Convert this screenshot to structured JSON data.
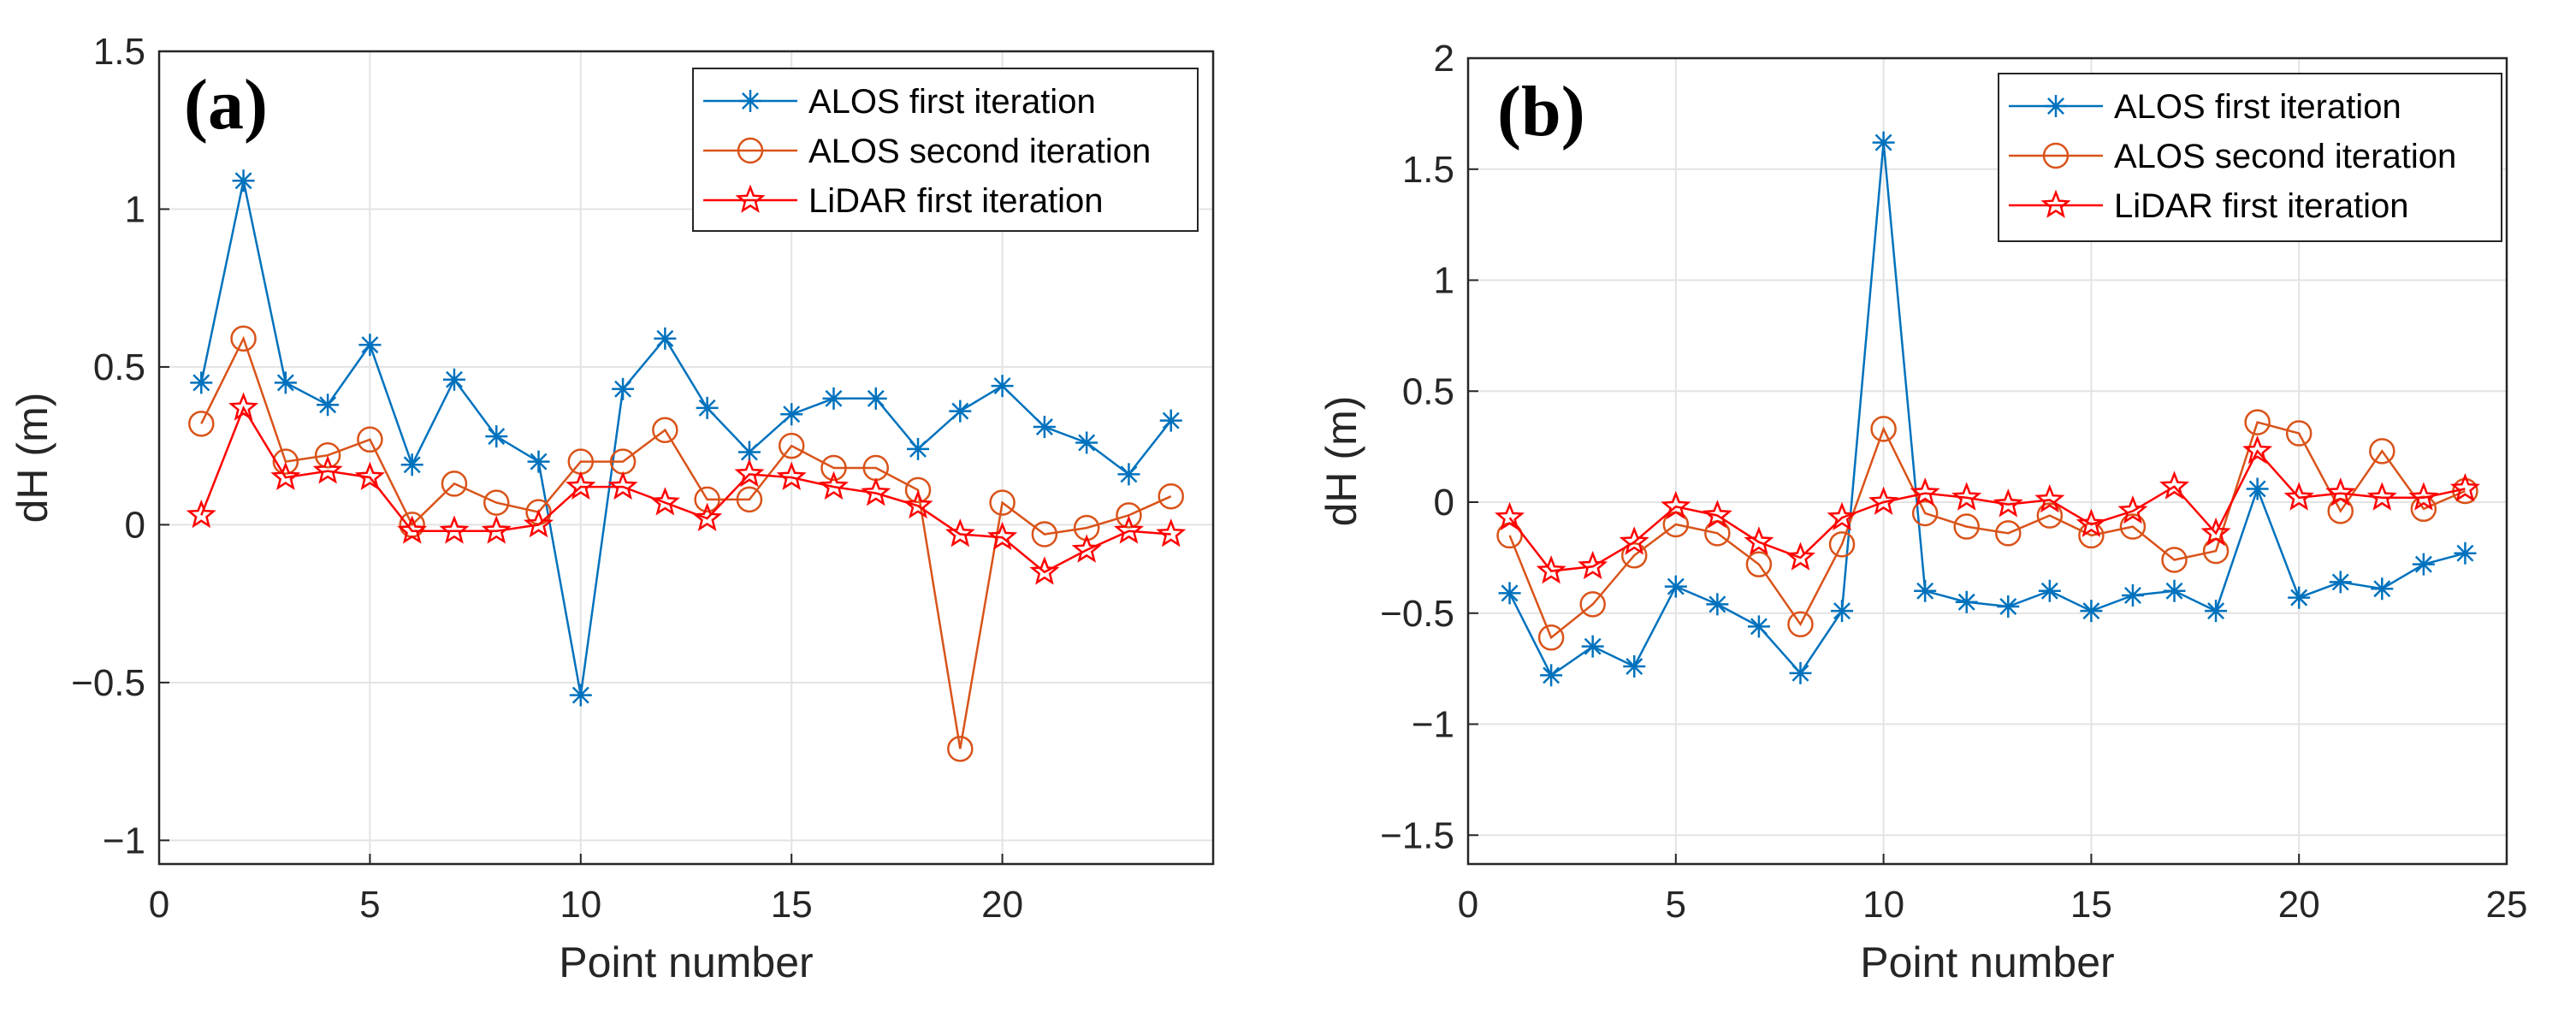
{
  "chart_data": [
    {
      "type": "line",
      "panel_label": "(a)",
      "xlabel": "Point number",
      "ylabel": "dH (m)",
      "xlim": [
        0,
        25
      ],
      "ylim": [
        -1.075,
        1.5
      ],
      "xticks": [
        0,
        5,
        10,
        15,
        20
      ],
      "xtick_labels": [
        "0",
        "5",
        "10",
        "15",
        "20"
      ],
      "yticks": [
        -1,
        -0.5,
        0,
        0.5,
        1,
        1.5
      ],
      "ytick_labels": [
        "−1",
        "−0.5",
        "0",
        "0.5",
        "1",
        "1.5"
      ],
      "grid": true,
      "legend_position": "top-right",
      "x": [
        1,
        2,
        3,
        4,
        5,
        6,
        7,
        8,
        9,
        10,
        11,
        12,
        13,
        14,
        15,
        16,
        17,
        18,
        19,
        20,
        21,
        22,
        23,
        24
      ],
      "series": [
        {
          "name": "ALOS first iteration",
          "color": "#0072BD",
          "marker": "asterisk",
          "values": [
            0.45,
            1.09,
            0.45,
            0.38,
            0.57,
            0.19,
            0.46,
            0.28,
            0.2,
            -0.54,
            0.43,
            0.59,
            0.37,
            0.23,
            0.35,
            0.4,
            0.4,
            0.24,
            0.36,
            0.44,
            0.31,
            0.26,
            0.16,
            0.33
          ]
        },
        {
          "name": "ALOS second iteration",
          "color": "#D95319",
          "marker": "circle",
          "values": [
            0.32,
            0.59,
            0.2,
            0.22,
            0.27,
            0.0,
            0.13,
            0.07,
            0.04,
            0.2,
            0.2,
            0.3,
            0.08,
            0.08,
            0.25,
            0.18,
            0.18,
            0.11,
            -0.71,
            0.07,
            -0.03,
            -0.01,
            0.03,
            0.09
          ]
        },
        {
          "name": "LiDAR first iteration",
          "color": "#FF0000",
          "marker": "star",
          "values": [
            0.03,
            0.37,
            0.15,
            0.17,
            0.15,
            -0.02,
            -0.02,
            -0.02,
            0.0,
            0.12,
            0.12,
            0.07,
            0.02,
            0.16,
            0.15,
            0.12,
            0.1,
            0.06,
            -0.03,
            -0.04,
            -0.15,
            -0.08,
            -0.02,
            -0.03
          ]
        }
      ]
    },
    {
      "type": "line",
      "panel_label": "(b)",
      "xlabel": "Point number",
      "ylabel": "dH (m)",
      "xlim": [
        0,
        25
      ],
      "ylim": [
        -1.63,
        2
      ],
      "xticks": [
        0,
        5,
        10,
        15,
        20,
        25
      ],
      "xtick_labels": [
        "0",
        "5",
        "10",
        "15",
        "20",
        "25"
      ],
      "yticks": [
        -1.5,
        -1,
        -0.5,
        0,
        0.5,
        1,
        1.5,
        2
      ],
      "ytick_labels": [
        "−1.5",
        "−1",
        "−0.5",
        "0",
        "0.5",
        "1",
        "1.5",
        "2"
      ],
      "grid": true,
      "legend_position": "top-right",
      "x": [
        1,
        2,
        3,
        4,
        5,
        6,
        7,
        8,
        9,
        10,
        11,
        12,
        13,
        14,
        15,
        16,
        17,
        18,
        19,
        20,
        21,
        22,
        23,
        24
      ],
      "series": [
        {
          "name": "ALOS first iteration",
          "color": "#0072BD",
          "marker": "asterisk",
          "values": [
            -0.41,
            -0.78,
            -0.65,
            -0.74,
            -0.38,
            -0.46,
            -0.56,
            -0.77,
            -0.49,
            1.62,
            -0.4,
            -0.45,
            -0.47,
            -0.4,
            -0.49,
            -0.42,
            -0.4,
            -0.49,
            0.06,
            -0.43,
            -0.36,
            -0.39,
            -0.28,
            -0.23
          ]
        },
        {
          "name": "ALOS second iteration",
          "color": "#D95319",
          "marker": "circle",
          "values": [
            -0.15,
            -0.61,
            -0.46,
            -0.24,
            -0.1,
            -0.14,
            -0.28,
            -0.55,
            -0.19,
            0.33,
            -0.05,
            -0.11,
            -0.14,
            -0.06,
            -0.15,
            -0.11,
            -0.26,
            -0.22,
            0.36,
            0.31,
            -0.04,
            0.23,
            -0.03,
            0.05
          ]
        },
        {
          "name": "LiDAR first iteration",
          "color": "#FF0000",
          "marker": "star",
          "values": [
            -0.07,
            -0.31,
            -0.29,
            -0.18,
            -0.02,
            -0.06,
            -0.18,
            -0.25,
            -0.07,
            0.0,
            0.04,
            0.02,
            -0.01,
            0.01,
            -0.1,
            -0.04,
            0.07,
            -0.14,
            0.23,
            0.02,
            0.04,
            0.02,
            0.02,
            0.06
          ]
        }
      ]
    }
  ]
}
